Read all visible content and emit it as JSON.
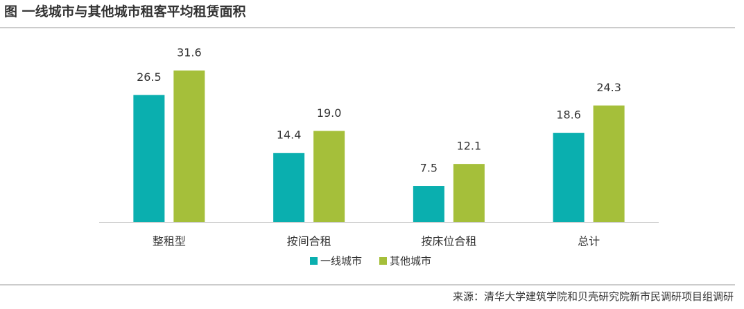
{
  "chart_data": {
    "type": "bar",
    "title": "图  一线城市与其他城市租客平均租赁面积",
    "categories": [
      "整租型",
      "按间合租",
      "按床位合租",
      "总计"
    ],
    "series": [
      {
        "name": "一线城市",
        "color": "#0aafaf",
        "values": [
          26.5,
          14.4,
          7.5,
          18.6
        ],
        "value_labels": [
          "26.5",
          "14.4",
          "7.5",
          "18.6"
        ]
      },
      {
        "name": "其他城市",
        "color": "#a5bf3a",
        "values": [
          31.6,
          19.0,
          12.1,
          24.3
        ],
        "value_labels": [
          "31.6",
          "19.0",
          "12.1",
          "24.3"
        ]
      }
    ],
    "source": "来源：清华大学建筑学院和贝壳研究院新市民调研项目组调研"
  }
}
